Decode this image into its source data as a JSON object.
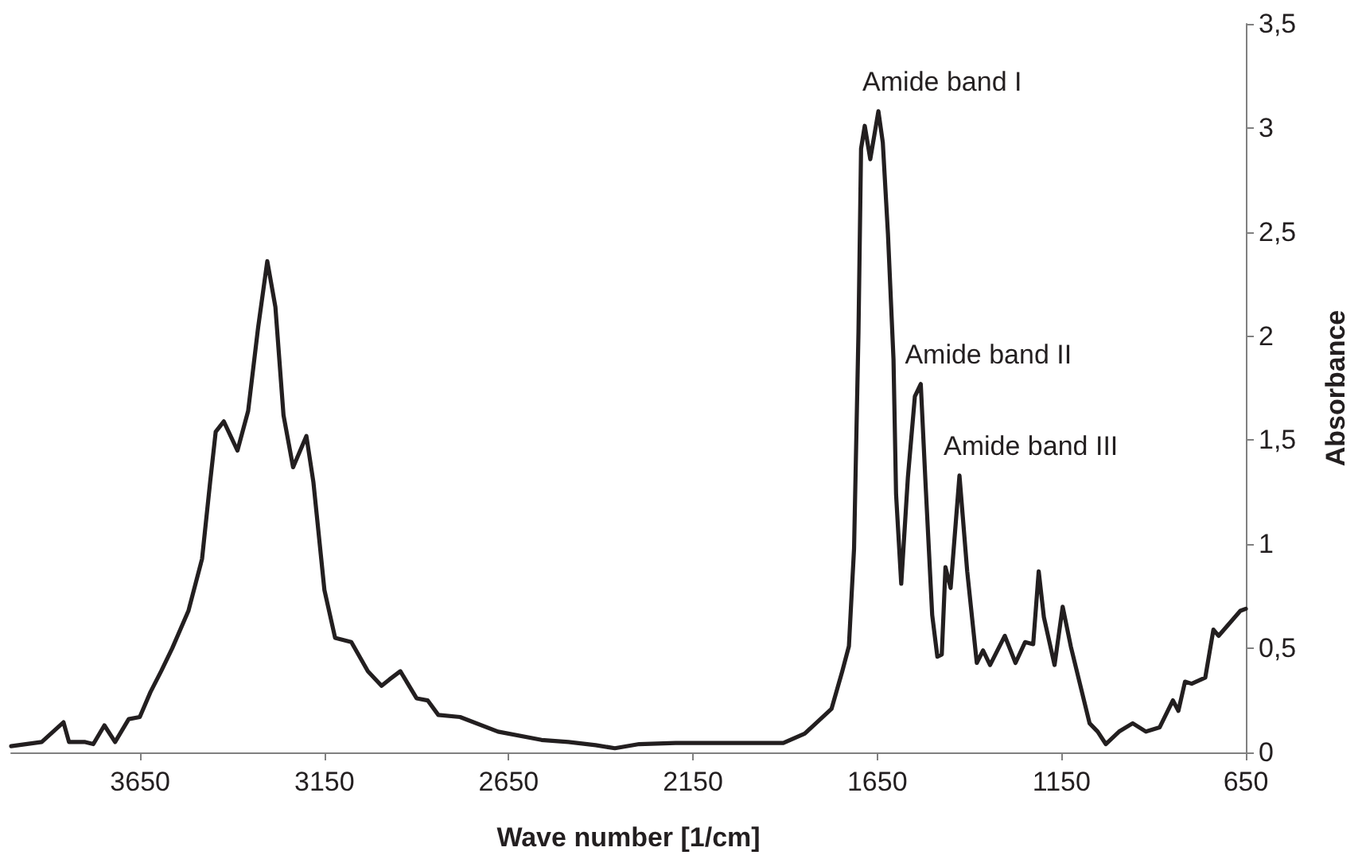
{
  "chart_data": {
    "type": "line",
    "xlabel": "Wave number [1/cm]",
    "ylabel": "Absorbance",
    "xlim": [
      4000,
      650
    ],
    "xticks": [
      3650,
      3150,
      2650,
      2150,
      1650,
      1150,
      650
    ],
    "ylim": [
      0,
      3.5
    ],
    "yticks": [
      0,
      {
        "value": 0.5,
        "label": "0,5"
      },
      1,
      {
        "value": 1.5,
        "label": "1,5"
      },
      2,
      {
        "value": 2.5,
        "label": "2,5"
      },
      3,
      {
        "value": 3.5,
        "label": "3,5"
      }
    ],
    "grid": false,
    "marker": "none",
    "line_style": "solid",
    "annotations": [
      {
        "text": "Amide band I",
        "x": 1647,
        "y": 3.08
      },
      {
        "text": "Amide band II",
        "x": 1532,
        "y": 1.77
      },
      {
        "text": "Amide band III",
        "x": 1427,
        "y": 1.33
      }
    ],
    "series": [
      {
        "color": "#231f20",
        "x": [
          4000,
          3917,
          3858,
          3843,
          3799,
          3777,
          3747,
          3718,
          3681,
          3651,
          3622,
          3593,
          3563,
          3519,
          3482,
          3460,
          3445,
          3423,
          3386,
          3357,
          3330,
          3305,
          3283,
          3261,
          3235,
          3199,
          3180,
          3150,
          3121,
          3077,
          3032,
          2995,
          2974,
          2944,
          2900,
          2870,
          2841,
          2782,
          2679,
          2561,
          2488,
          2414,
          2362,
          2296,
          2197,
          1905,
          1847,
          1774,
          1745,
          1727,
          1713,
          1701,
          1694,
          1684,
          1669,
          1647,
          1635,
          1621,
          1606,
          1599,
          1585,
          1567,
          1548,
          1532,
          1519,
          1501,
          1487,
          1475,
          1465,
          1451,
          1427,
          1406,
          1380,
          1363,
          1344,
          1304,
          1275,
          1249,
          1227,
          1212,
          1198,
          1169,
          1147,
          1125,
          1074,
          1052,
          1030,
          994,
          957,
          921,
          884,
          848,
          833,
          815,
          797,
          760,
          738,
          724,
          665,
          650
        ],
        "values": [
          0.03,
          0.05,
          0.145,
          0.05,
          0.05,
          0.04,
          0.13,
          0.05,
          0.16,
          0.17,
          0.29,
          0.39,
          0.5,
          0.68,
          0.93,
          1.3,
          1.54,
          1.59,
          1.45,
          1.64,
          2.04,
          2.36,
          2.14,
          1.62,
          1.37,
          1.52,
          1.3,
          0.78,
          0.55,
          0.53,
          0.39,
          0.32,
          0.35,
          0.39,
          0.26,
          0.25,
          0.18,
          0.17,
          0.1,
          0.06,
          0.05,
          0.035,
          0.02,
          0.04,
          0.045,
          0.045,
          0.09,
          0.21,
          0.39,
          0.51,
          0.98,
          2.02,
          2.9,
          3.01,
          2.85,
          3.08,
          2.93,
          2.49,
          1.89,
          1.24,
          0.81,
          1.32,
          1.71,
          1.77,
          1.29,
          0.66,
          0.46,
          0.47,
          0.89,
          0.79,
          1.33,
          0.87,
          0.43,
          0.49,
          0.42,
          0.56,
          0.43,
          0.53,
          0.52,
          0.87,
          0.65,
          0.42,
          0.7,
          0.51,
          0.14,
          0.1,
          0.04,
          0.1,
          0.14,
          0.1,
          0.12,
          0.25,
          0.2,
          0.34,
          0.33,
          0.36,
          0.59,
          0.56,
          0.68,
          0.69
        ]
      }
    ]
  }
}
